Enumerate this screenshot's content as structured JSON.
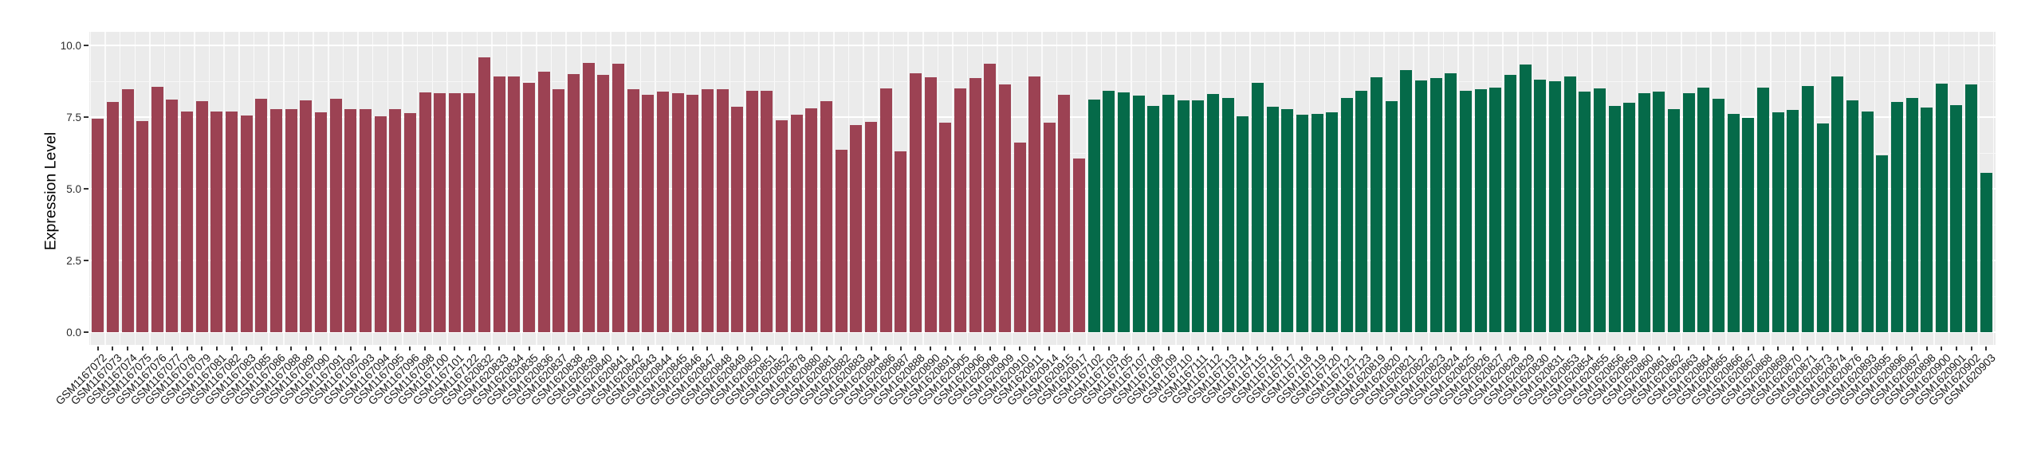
{
  "chart_data": {
    "type": "bar",
    "title": "",
    "xlabel": "",
    "ylabel": "Expression Level",
    "ylim": [
      0,
      10.5
    ],
    "yticks_major": [
      0,
      2.5,
      5,
      7.5,
      10
    ],
    "ytick_labels": [
      "0.0",
      "2.5",
      "5.0",
      "7.5",
      "10.0"
    ],
    "yticks_minor": [
      1.25,
      3.75,
      6.25,
      8.75
    ],
    "grid": "white gridlines on light-gray panel",
    "legend_position": "none",
    "x_axis": "GEO sample accessions, labels rotated 45 degrees",
    "groups": [
      {
        "name": "group-1-red",
        "color": "#9c4253",
        "samples": [
          [
            "GSM1167072",
            7.44
          ],
          [
            "GSM1167073",
            8.02
          ],
          [
            "GSM1167074",
            8.48
          ],
          [
            "GSM1167075",
            7.37
          ],
          [
            "GSM1167076",
            8.55
          ],
          [
            "GSM1167077",
            8.1
          ],
          [
            "GSM1167078",
            7.7
          ],
          [
            "GSM1167079",
            8.06
          ],
          [
            "GSM1167081",
            7.7
          ],
          [
            "GSM1167082",
            7.7
          ],
          [
            "GSM1167083",
            7.56
          ],
          [
            "GSM1167085",
            8.14
          ],
          [
            "GSM1167086",
            7.77
          ],
          [
            "GSM1167088",
            7.77
          ],
          [
            "GSM1167089",
            8.07
          ],
          [
            "GSM1167090",
            7.68
          ],
          [
            "GSM1167091",
            8.14
          ],
          [
            "GSM1167092",
            7.77
          ],
          [
            "GSM1167093",
            7.77
          ],
          [
            "GSM1167094",
            7.52
          ],
          [
            "GSM1167095",
            7.77
          ],
          [
            "GSM1167096",
            7.63
          ],
          [
            "GSM1167098",
            8.36
          ],
          [
            "GSM1167100",
            8.33
          ],
          [
            "GSM1167101",
            8.33
          ],
          [
            "GSM1167122",
            8.33
          ],
          [
            "GSM1620832",
            9.57
          ],
          [
            "GSM1620833",
            8.91
          ],
          [
            "GSM1620834",
            8.93
          ],
          [
            "GSM1620835",
            8.69
          ],
          [
            "GSM1620836",
            9.08
          ],
          [
            "GSM1620837",
            8.47
          ],
          [
            "GSM1620838",
            8.99
          ],
          [
            "GSM1620839",
            9.4
          ],
          [
            "GSM1620840",
            8.96
          ],
          [
            "GSM1620841",
            9.37
          ],
          [
            "GSM1620842",
            8.47
          ],
          [
            "GSM1620843",
            8.28
          ],
          [
            "GSM1620844",
            8.38
          ],
          [
            "GSM1620845",
            8.32
          ],
          [
            "GSM1620846",
            8.27
          ],
          [
            "GSM1620847",
            8.46
          ],
          [
            "GSM1620848",
            8.46
          ],
          [
            "GSM1620849",
            7.86
          ],
          [
            "GSM1620850",
            8.41
          ],
          [
            "GSM1620851",
            8.41
          ],
          [
            "GSM1620852",
            7.4
          ],
          [
            "GSM1620878",
            7.57
          ],
          [
            "GSM1620880",
            7.81
          ],
          [
            "GSM1620881",
            8.05
          ],
          [
            "GSM1620882",
            6.37
          ],
          [
            "GSM1620883",
            7.22
          ],
          [
            "GSM1620884",
            7.32
          ],
          [
            "GSM1620886",
            8.5
          ],
          [
            "GSM1620887",
            6.3
          ],
          [
            "GSM1620888",
            9.04
          ],
          [
            "GSM1620890",
            8.9
          ],
          [
            "GSM1620891",
            7.31
          ],
          [
            "GSM1620905",
            8.51
          ],
          [
            "GSM1620906",
            8.86
          ],
          [
            "GSM1620908",
            9.36
          ],
          [
            "GSM1620909",
            8.65
          ],
          [
            "GSM1620910",
            6.61
          ],
          [
            "GSM1620911",
            8.92
          ],
          [
            "GSM1620914",
            7.31
          ],
          [
            "GSM1620915",
            8.28
          ],
          [
            "GSM1620917",
            6.06
          ]
        ]
      },
      {
        "name": "group-2-green",
        "color": "#056a49",
        "samples": [
          [
            "GSM1167102",
            8.1
          ],
          [
            "GSM1167103",
            8.41
          ],
          [
            "GSM1167105",
            8.36
          ],
          [
            "GSM1167107",
            8.25
          ],
          [
            "GSM1167108",
            7.9
          ],
          [
            "GSM1167109",
            8.28
          ],
          [
            "GSM1167110",
            8.08
          ],
          [
            "GSM1167111",
            8.09
          ],
          [
            "GSM1167112",
            8.31
          ],
          [
            "GSM1167113",
            8.16
          ],
          [
            "GSM1167114",
            7.52
          ],
          [
            "GSM1167115",
            8.69
          ],
          [
            "GSM1167116",
            7.85
          ],
          [
            "GSM1167117",
            7.77
          ],
          [
            "GSM1167118",
            7.58
          ],
          [
            "GSM1167119",
            7.61
          ],
          [
            "GSM1167120",
            7.68
          ],
          [
            "GSM1167121",
            8.16
          ],
          [
            "GSM1167123",
            8.41
          ],
          [
            "GSM1620819",
            8.88
          ],
          [
            "GSM1620820",
            8.06
          ],
          [
            "GSM1620821",
            9.15
          ],
          [
            "GSM1620822",
            8.78
          ],
          [
            "GSM1620823",
            8.86
          ],
          [
            "GSM1620824",
            9.03
          ],
          [
            "GSM1620825",
            8.41
          ],
          [
            "GSM1620826",
            8.46
          ],
          [
            "GSM1620827",
            8.53
          ],
          [
            "GSM1620828",
            8.96
          ],
          [
            "GSM1620829",
            9.32
          ],
          [
            "GSM1620830",
            8.81
          ],
          [
            "GSM1620831",
            8.75
          ],
          [
            "GSM1620853",
            8.91
          ],
          [
            "GSM1620854",
            8.38
          ],
          [
            "GSM1620855",
            8.5
          ],
          [
            "GSM1620856",
            7.88
          ],
          [
            "GSM1620859",
            8.01
          ],
          [
            "GSM1620860",
            8.33
          ],
          [
            "GSM1620861",
            8.38
          ],
          [
            "GSM1620862",
            7.77
          ],
          [
            "GSM1620863",
            8.32
          ],
          [
            "GSM1620864",
            8.53
          ],
          [
            "GSM1620865",
            8.13
          ],
          [
            "GSM1620866",
            7.61
          ],
          [
            "GSM1620867",
            7.46
          ],
          [
            "GSM1620868",
            8.54
          ],
          [
            "GSM1620869",
            7.66
          ],
          [
            "GSM1620870",
            7.75
          ],
          [
            "GSM1620871",
            8.57
          ],
          [
            "GSM1620873",
            7.27
          ],
          [
            "GSM1620874",
            8.91
          ],
          [
            "GSM1620876",
            8.07
          ],
          [
            "GSM1620893",
            7.7
          ],
          [
            "GSM1620895",
            6.18
          ],
          [
            "GSM1620896",
            8.02
          ],
          [
            "GSM1620897",
            8.18
          ],
          [
            "GSM1620898",
            7.82
          ],
          [
            "GSM1620900",
            8.67
          ],
          [
            "GSM1620901",
            7.91
          ],
          [
            "GSM1620902",
            8.65
          ],
          [
            "GSM1620903",
            5.55
          ]
        ]
      }
    ],
    "style": {
      "panel_background": "#ebebeb",
      "gridline_color": "#ffffff",
      "tick_color": "#333333",
      "text_color": "#1a1a1a",
      "page_background": "#ffffff"
    }
  }
}
